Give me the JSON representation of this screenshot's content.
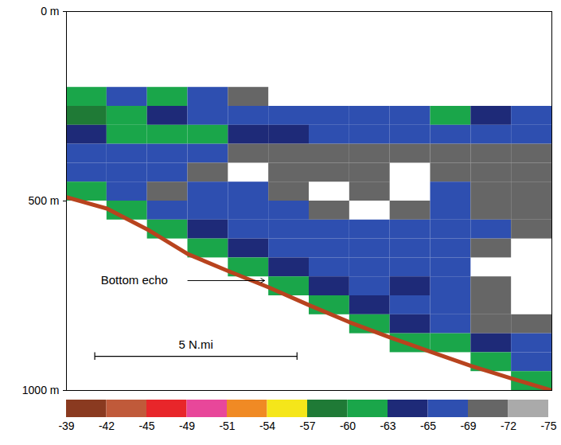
{
  "chart_data": {
    "type": "heatmap",
    "xlim": [
      0,
      12
    ],
    "ylim": [
      0,
      1000
    ],
    "yticks": [
      {
        "value": 0,
        "label": "0 m"
      },
      {
        "value": 500,
        "label": "500 m"
      },
      {
        "value": 1000,
        "label": "1000 m"
      }
    ],
    "tick_labels": "y",
    "cells": {
      "x": [
        0.5,
        1.5,
        2.5,
        3.5,
        4.5,
        5.5,
        6.5,
        7.5,
        8.5,
        9.5,
        10.5,
        11.5
      ],
      "y": [
        25,
        75,
        125,
        175,
        225,
        275,
        325,
        375,
        425,
        475,
        525,
        575,
        625,
        675,
        725,
        775,
        825,
        875,
        925,
        975
      ],
      "values": [
        [
          null,
          null,
          null,
          null,
          null,
          null,
          null,
          null,
          null,
          null,
          null,
          null
        ],
        [
          null,
          null,
          null,
          null,
          null,
          null,
          null,
          null,
          null,
          null,
          null,
          null
        ],
        [
          null,
          null,
          null,
          null,
          null,
          null,
          null,
          null,
          null,
          null,
          null,
          null
        ],
        [
          null,
          null,
          null,
          null,
          null,
          null,
          null,
          null,
          null,
          null,
          null,
          null
        ],
        [
          -63,
          -66,
          -63,
          -66,
          -70,
          null,
          null,
          null,
          null,
          null,
          null,
          null
        ],
        [
          -60,
          -62,
          -64,
          -66,
          -66,
          -66,
          -66,
          -66,
          -66,
          -63,
          -64,
          -66
        ],
        [
          -64,
          -63,
          -62,
          -63,
          -65,
          -65,
          -66,
          -66,
          -66,
          -66,
          -67,
          -67
        ],
        [
          -68,
          -68,
          -68,
          -68,
          -70,
          -70,
          -70,
          -70,
          -70,
          -70,
          -70,
          -70
        ],
        [
          -67,
          -67,
          -67,
          -70,
          null,
          -71,
          -71,
          -71,
          null,
          -70,
          -71,
          -70
        ],
        [
          -62,
          -67,
          -70,
          -68,
          -67,
          -70,
          null,
          -72,
          null,
          -69,
          -71,
          -72
        ],
        [
          null,
          -62,
          -66,
          -67,
          -67,
          -68,
          -70,
          null,
          -70,
          -68,
          -70,
          -71
        ],
        [
          null,
          null,
          -61,
          -65,
          -66,
          -66,
          -67,
          -69,
          -68,
          -67,
          -68,
          -72
        ],
        [
          null,
          null,
          null,
          -61,
          -65,
          -66,
          -66,
          -67,
          -67,
          -67,
          -70,
          null
        ],
        [
          null,
          null,
          null,
          null,
          -62,
          -65,
          -66,
          -66,
          -67,
          -68,
          null,
          null
        ],
        [
          null,
          null,
          null,
          null,
          null,
          -62,
          -65,
          -66,
          -64,
          -68,
          -71,
          null
        ],
        [
          null,
          null,
          null,
          null,
          null,
          null,
          -62,
          -65,
          -66,
          -67,
          -71,
          null
        ],
        [
          null,
          null,
          null,
          null,
          null,
          null,
          null,
          -62,
          -65,
          -66,
          -70,
          -71
        ],
        [
          null,
          null,
          null,
          null,
          null,
          null,
          null,
          null,
          -61,
          -63,
          -65,
          -68
        ],
        [
          null,
          null,
          null,
          null,
          null,
          null,
          null,
          null,
          null,
          null,
          -62,
          -66
        ],
        [
          null,
          null,
          null,
          null,
          null,
          null,
          null,
          null,
          null,
          null,
          null,
          -62
        ]
      ]
    },
    "bottom": {
      "x": [
        0,
        1,
        2,
        3,
        4,
        5,
        6,
        7,
        8,
        9,
        10,
        11,
        12
      ],
      "depth": [
        490,
        520,
        575,
        640,
        685,
        728,
        775,
        820,
        860,
        898,
        935,
        968,
        1000
      ],
      "color": "#b8431e"
    },
    "annotation": {
      "text": "Bottom echo",
      "x": 0.85,
      "depth": 710,
      "arrow_from_x": 3.0,
      "arrow_x": 4.9,
      "arrow_depth": 710
    },
    "scale_bar": {
      "label": "5 N.mi",
      "x1": 0.7,
      "x2": 5.7,
      "depth": 910
    },
    "colorbar": {
      "ticks": [
        -39,
        -42,
        -45,
        -49,
        -51,
        -54,
        -57,
        -60,
        -63,
        -65,
        -69,
        -72,
        -75
      ],
      "colors": [
        "#8a3a20",
        "#c05a3a",
        "#e8262a",
        "#e8479a",
        "#f08a24",
        "#f5e61a",
        "#1f7a36",
        "#1aa64a",
        "#1e2a78",
        "#2e4fb0",
        "#666666",
        "#aaaaaa"
      ]
    }
  }
}
